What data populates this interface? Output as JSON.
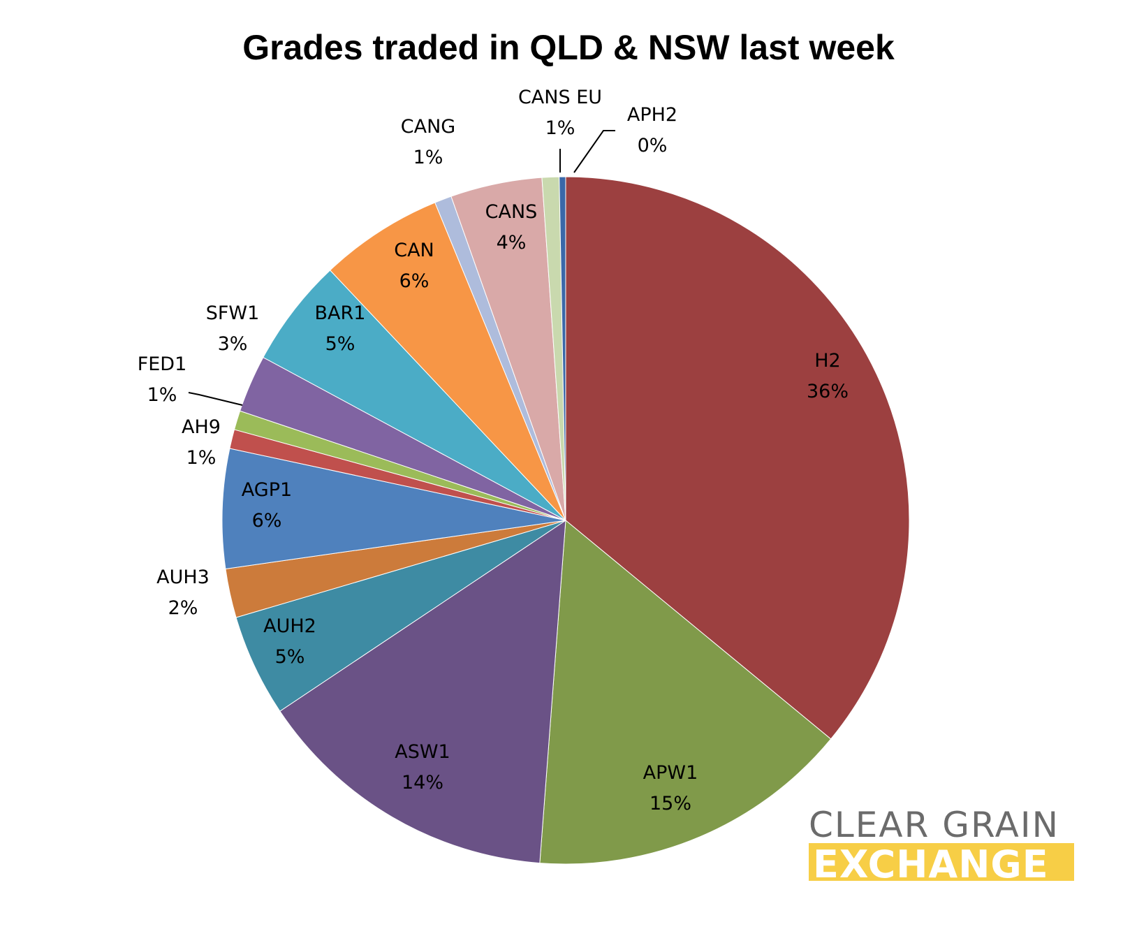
{
  "chart_data": {
    "type": "pie",
    "title": "Grades traded in QLD & NSW last week",
    "slices": [
      {
        "label": "H2",
        "value": 35.9,
        "percent_label": "36%",
        "color": "#9c4040"
      },
      {
        "label": "APW1",
        "value": 15.2,
        "percent_label": "15%",
        "color": "#809a4a"
      },
      {
        "label": "ASW1",
        "value": 14.4,
        "percent_label": "14%",
        "color": "#6a5286"
      },
      {
        "label": "AUH2",
        "value": 4.8,
        "percent_label": "5%",
        "color": "#3e8ba3"
      },
      {
        "label": "AUH3",
        "value": 2.3,
        "percent_label": "2%",
        "color": "#cc7b3b"
      },
      {
        "label": "AGP1",
        "value": 5.6,
        "percent_label": "6%",
        "color": "#4f81bd"
      },
      {
        "label": "AH9",
        "value": 0.9,
        "percent_label": "1%",
        "color": "#c0504d"
      },
      {
        "label": "FED1",
        "value": 0.9,
        "percent_label": "1%",
        "color": "#9bbb59"
      },
      {
        "label": "SFW1",
        "value": 2.7,
        "percent_label": "3%",
        "color": "#8064a2"
      },
      {
        "label": "BAR1",
        "value": 5.1,
        "percent_label": "5%",
        "color": "#4bacc6"
      },
      {
        "label": "CAN",
        "value": 5.8,
        "percent_label": "6%",
        "color": "#f79646"
      },
      {
        "label": "CANG",
        "value": 0.8,
        "percent_label": "1%",
        "color": "#aebcdc"
      },
      {
        "label": "CANS",
        "value": 4.3,
        "percent_label": "4%",
        "color": "#d9a9a8"
      },
      {
        "label": "CANS EU",
        "value": 0.8,
        "percent_label": "1%",
        "color": "#c9d9ae"
      },
      {
        "label": "APH2",
        "value": 0.3,
        "percent_label": "0%",
        "color": "#3a68a8"
      }
    ]
  },
  "logo": {
    "line1": "CLEAR GRAIN",
    "line2": "EXCHANGE",
    "line1_color": "#6b6b6b",
    "line2_bg": "#f7ce46"
  }
}
